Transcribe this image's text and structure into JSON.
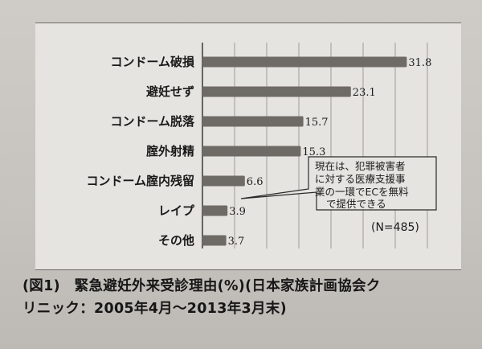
{
  "chart_data": {
    "type": "bar",
    "orientation": "horizontal",
    "categories": [
      "コンドーム破損",
      "避妊せず",
      "コンドーム脱落",
      "腟外射精",
      "コンドーム腟内残留",
      "レイプ",
      "その他"
    ],
    "values": [
      31.8,
      23.1,
      15.7,
      15.3,
      6.6,
      3.9,
      3.7
    ],
    "value_labels": [
      "31.8",
      "23.1",
      "15.7",
      "15.3",
      "6.6",
      "3.9",
      "3.7"
    ],
    "xlim": [
      0,
      35
    ],
    "grid": true,
    "bar_color": "#6e6a66",
    "sample_note": "(N=485)",
    "callout_lines": [
      "現在は、犯罪被害者",
      "に対する医療支援事",
      "業の一環でECを無料",
      "で提供できる"
    ]
  },
  "caption": {
    "line1": "(図1)　緊急避妊外来受診理由(%)(日本家族計画協会ク",
    "line2": "リニック：2005年4月〜2013年3月末)"
  }
}
